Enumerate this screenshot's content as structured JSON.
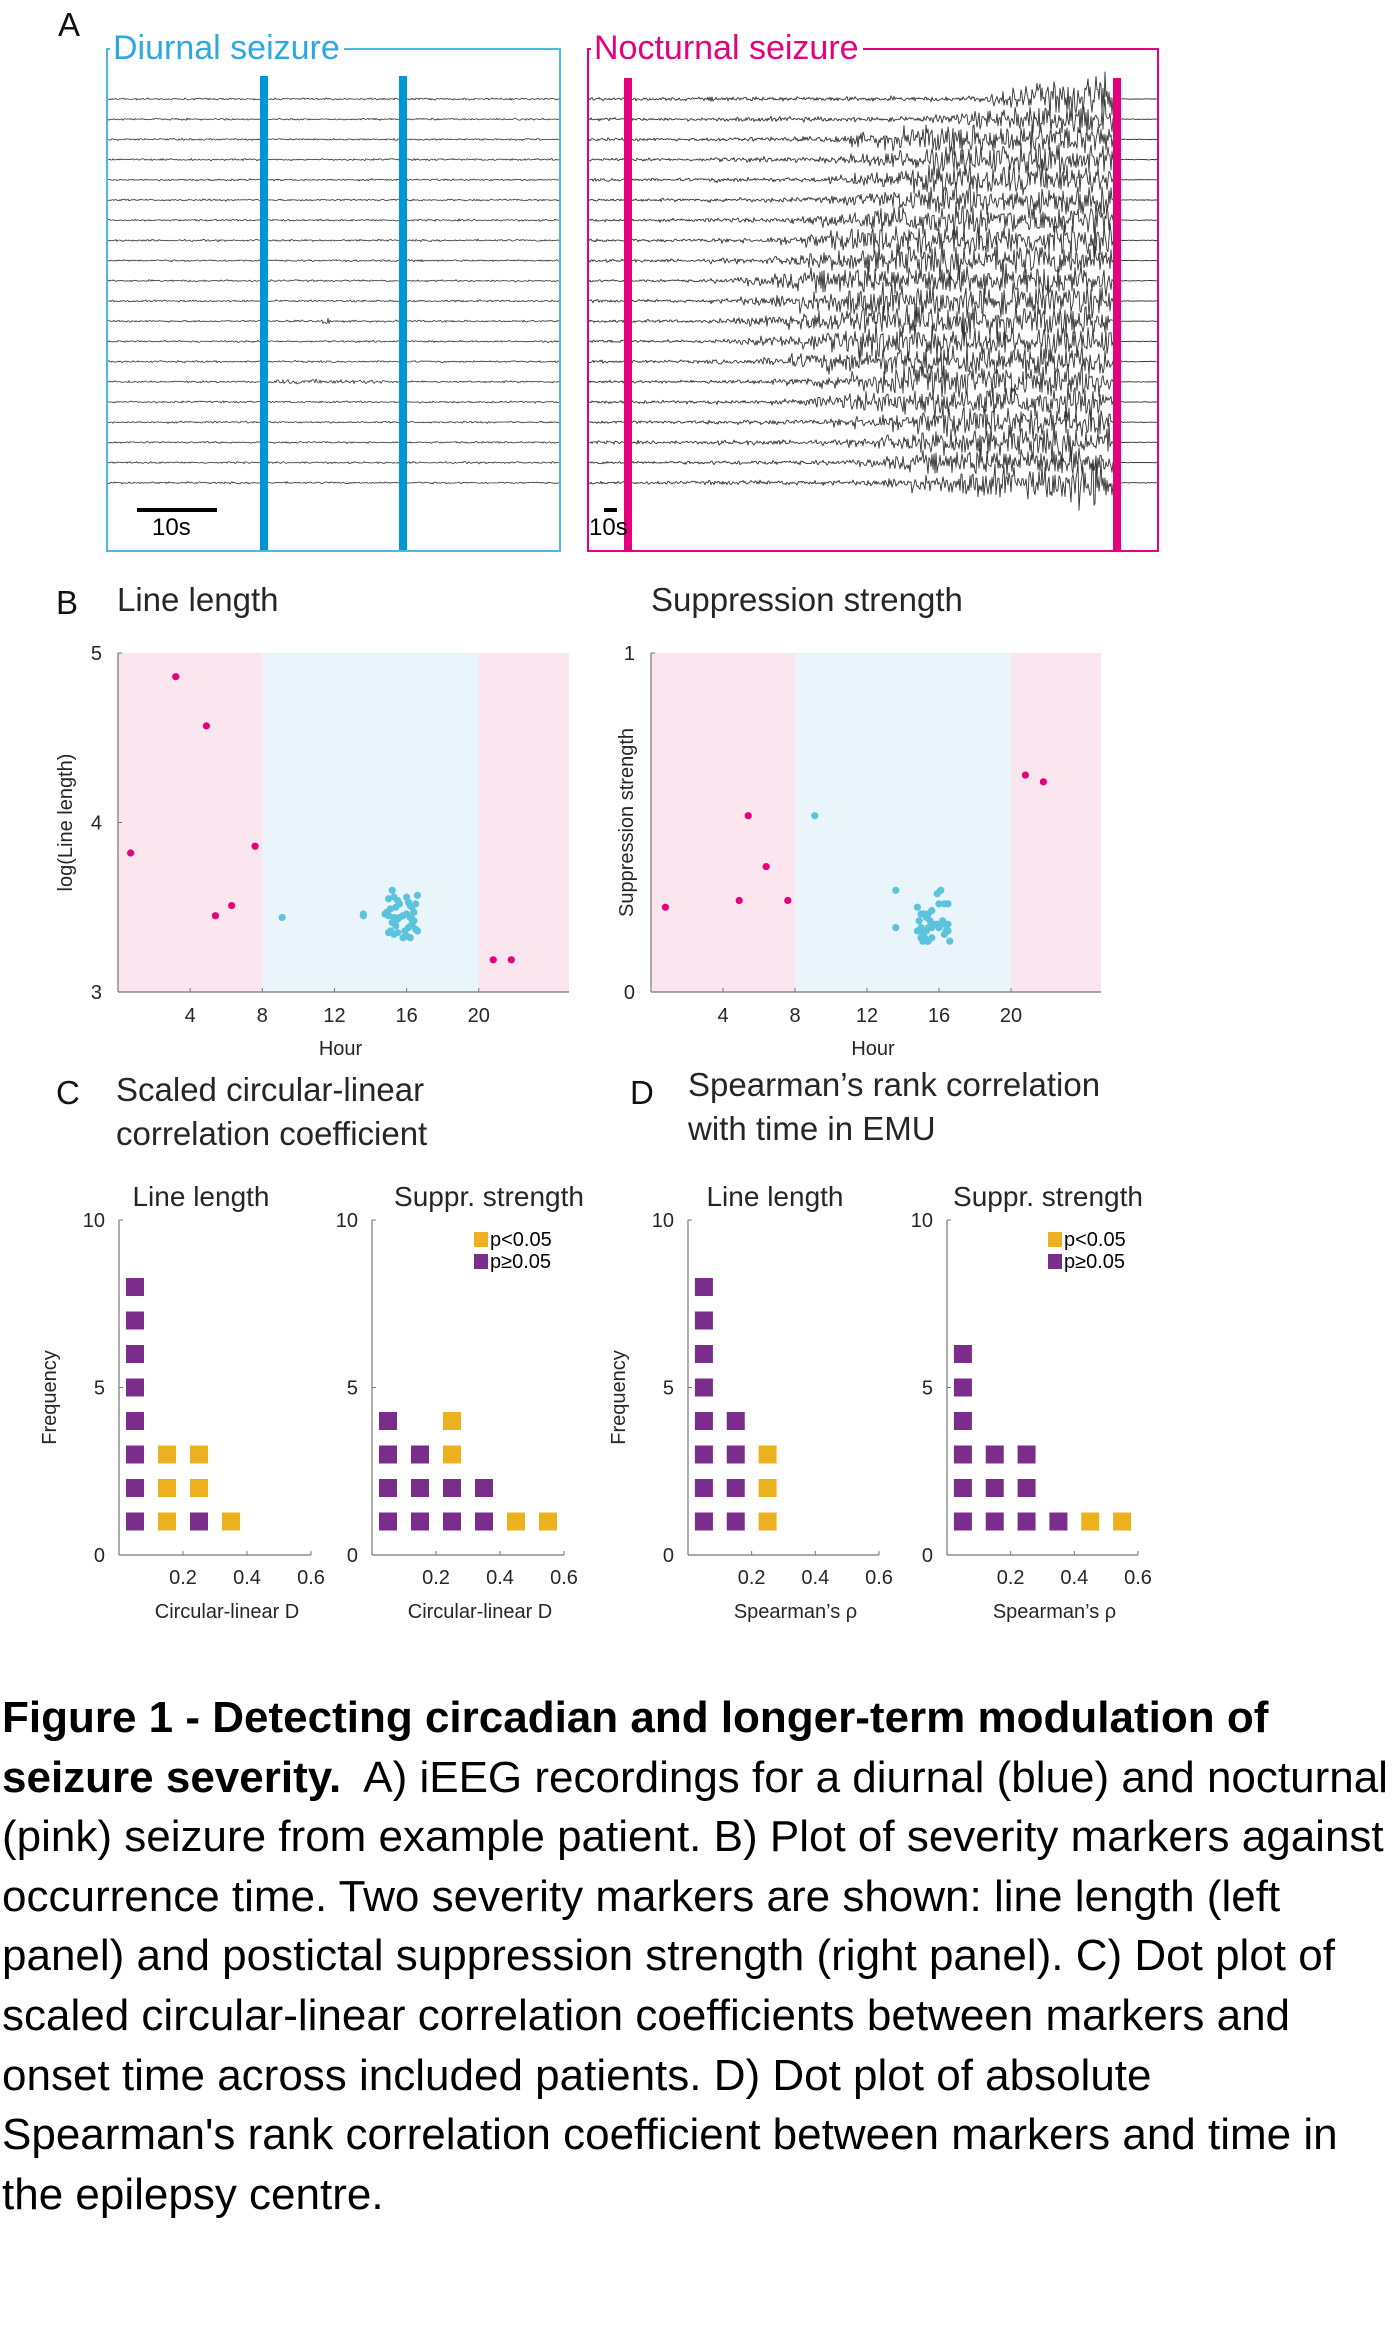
{
  "figure": {
    "panel_letters": {
      "a": "A",
      "b": "B",
      "c": "C",
      "d": "D"
    },
    "colors": {
      "diurnal": "#0096d6",
      "diurnal_box": "#4cb8e8",
      "diurnal_label": "#2ea8e1",
      "nocturnal": "#e5007d",
      "night_bg": "#fbe5ef",
      "day_bg": "#e9f4fb",
      "dot_day": "#5cc3dc",
      "dot_night": "#e5007d",
      "significant": "#edb11f",
      "not_significant": "#7a2d8a",
      "trace": "#333333"
    }
  },
  "panel_a": {
    "diurnal": {
      "label": "Diurnal seizure",
      "scale_bar_label": "10s",
      "channels": 20
    },
    "nocturnal": {
      "label": "Nocturnal seizure",
      "scale_bar_label": "10s",
      "channels": 20
    }
  },
  "panel_b": {
    "left_title": "Line length",
    "right_title": "Suppression strength"
  },
  "panel_c": {
    "title_line1": "Scaled circular-linear",
    "title_line2": "correlation coefficient"
  },
  "panel_d": {
    "title_line1": "Spearman’s rank correlation",
    "title_line2": "with time in EMU"
  },
  "chart_data": [
    {
      "id": "b-line-length",
      "type": "scatter",
      "title": "Line length",
      "xlabel": "Hour",
      "ylabel": "log(Line length)",
      "xlim": [
        0,
        25
      ],
      "ylim": [
        3,
        5
      ],
      "xticks": [
        4,
        8,
        12,
        16,
        20
      ],
      "yticks": [
        3,
        4,
        5
      ],
      "shading": [
        {
          "from": 0,
          "to": 8,
          "period": "night"
        },
        {
          "from": 8,
          "to": 20,
          "period": "day"
        },
        {
          "from": 20,
          "to": 25,
          "period": "night"
        }
      ],
      "series": [
        {
          "name": "nocturnal",
          "points": [
            [
              0.7,
              3.82
            ],
            [
              3.2,
              4.86
            ],
            [
              4.9,
              4.57
            ],
            [
              5.4,
              3.45
            ],
            [
              6.3,
              3.51
            ],
            [
              7.6,
              3.86
            ],
            [
              20.8,
              3.19
            ],
            [
              21.8,
              3.19
            ]
          ]
        },
        {
          "name": "diurnal",
          "points": [
            [
              9.1,
              3.44
            ],
            [
              13.6,
              3.45
            ],
            [
              13.6,
              3.46
            ],
            [
              15.2,
              3.6
            ],
            [
              15.0,
              3.55
            ],
            [
              15.3,
              3.56
            ],
            [
              15.5,
              3.54
            ],
            [
              15.6,
              3.52
            ],
            [
              15.4,
              3.5
            ],
            [
              15.1,
              3.49
            ],
            [
              14.9,
              3.47
            ],
            [
              14.8,
              3.46
            ],
            [
              15.0,
              3.45
            ],
            [
              15.3,
              3.44
            ],
            [
              15.5,
              3.43
            ],
            [
              15.6,
              3.44
            ],
            [
              15.2,
              3.41
            ],
            [
              15.4,
              3.39
            ],
            [
              15.1,
              3.36
            ],
            [
              15.0,
              3.35
            ],
            [
              15.3,
              3.34
            ],
            [
              15.5,
              3.35
            ],
            [
              15.8,
              3.32
            ],
            [
              16.0,
              3.33
            ],
            [
              16.2,
              3.32
            ],
            [
              15.9,
              3.36
            ],
            [
              16.1,
              3.38
            ],
            [
              16.3,
              3.4
            ],
            [
              16.5,
              3.37
            ],
            [
              16.6,
              3.36
            ],
            [
              16.4,
              3.42
            ],
            [
              16.2,
              3.44
            ],
            [
              16.0,
              3.46
            ],
            [
              16.4,
              3.47
            ],
            [
              16.3,
              3.5
            ],
            [
              16.5,
              3.52
            ],
            [
              16.1,
              3.53
            ],
            [
              16.2,
              3.51
            ],
            [
              16.0,
              3.56
            ],
            [
              16.6,
              3.57
            ],
            [
              15.8,
              3.45
            ],
            [
              16.3,
              3.43
            ]
          ]
        }
      ]
    },
    {
      "id": "b-suppression-strength",
      "type": "scatter",
      "title": "Suppression strength",
      "xlabel": "Hour",
      "ylabel": "Suppression strength",
      "xlim": [
        0,
        25
      ],
      "ylim": [
        0,
        1
      ],
      "xticks": [
        4,
        8,
        12,
        16,
        20
      ],
      "yticks": [
        0,
        1
      ],
      "shading": [
        {
          "from": 0,
          "to": 8,
          "period": "night"
        },
        {
          "from": 8,
          "to": 20,
          "period": "day"
        },
        {
          "from": 20,
          "to": 25,
          "period": "night"
        }
      ],
      "series": [
        {
          "name": "nocturnal",
          "points": [
            [
              0.8,
              0.25
            ],
            [
              4.9,
              0.27
            ],
            [
              5.4,
              0.52
            ],
            [
              6.4,
              0.37
            ],
            [
              7.6,
              0.27
            ],
            [
              20.8,
              0.64
            ],
            [
              21.8,
              0.62
            ]
          ]
        },
        {
          "name": "diurnal",
          "points": [
            [
              9.1,
              0.52
            ],
            [
              13.6,
              0.3
            ],
            [
              13.6,
              0.19
            ],
            [
              15.9,
              0.29
            ],
            [
              16.1,
              0.3
            ],
            [
              16.0,
              0.26
            ],
            [
              16.3,
              0.26
            ],
            [
              16.5,
              0.26
            ],
            [
              14.8,
              0.25
            ],
            [
              15.6,
              0.24
            ],
            [
              15.0,
              0.23
            ],
            [
              15.2,
              0.23
            ],
            [
              15.4,
              0.23
            ],
            [
              14.9,
              0.21
            ],
            [
              15.3,
              0.22
            ],
            [
              15.5,
              0.21
            ],
            [
              15.7,
              0.2
            ],
            [
              15.9,
              0.2
            ],
            [
              16.1,
              0.2
            ],
            [
              16.3,
              0.2
            ],
            [
              16.5,
              0.2
            ],
            [
              16.2,
              0.21
            ],
            [
              15.0,
              0.19
            ],
            [
              15.4,
              0.19
            ],
            [
              15.6,
              0.19
            ],
            [
              16.0,
              0.19
            ],
            [
              16.4,
              0.18
            ],
            [
              14.8,
              0.18
            ],
            [
              15.1,
              0.17
            ],
            [
              15.3,
              0.18
            ],
            [
              16.3,
              0.17
            ],
            [
              16.5,
              0.18
            ],
            [
              15.0,
              0.16
            ],
            [
              15.2,
              0.16
            ],
            [
              15.4,
              0.15
            ],
            [
              15.6,
              0.16
            ],
            [
              16.6,
              0.15
            ],
            [
              15.1,
              0.15
            ],
            [
              15.3,
              0.15
            ]
          ]
        }
      ]
    },
    {
      "id": "c-line-length",
      "type": "dot-histogram",
      "title": "Line length",
      "xlabel": "Circular-linear D",
      "ylabel": "Frequency",
      "xlim": [
        0,
        0.6
      ],
      "ylim": [
        0,
        10
      ],
      "xticks": [
        "0.2",
        "0.4",
        "0.6"
      ],
      "yticks": [
        "0",
        "5",
        "10"
      ],
      "bins": [
        {
          "center": 0.05,
          "stack": [
            "n",
            "n",
            "n",
            "n",
            "n",
            "n",
            "n",
            "n"
          ]
        },
        {
          "center": 0.15,
          "stack": [
            "s",
            "s",
            "s"
          ]
        },
        {
          "center": 0.25,
          "stack": [
            "n",
            "s",
            "s"
          ]
        },
        {
          "center": 0.35,
          "stack": [
            "s"
          ]
        }
      ]
    },
    {
      "id": "c-suppr-strength",
      "type": "dot-histogram",
      "title": "Suppr. strength",
      "xlabel": "Circular-linear D",
      "ylabel": "",
      "xlim": [
        0,
        0.6
      ],
      "ylim": [
        0,
        10
      ],
      "xticks": [
        "0.2",
        "0.4",
        "0.6"
      ],
      "yticks": [
        "0",
        "5",
        "10"
      ],
      "legend": {
        "position": "top-right",
        "entries": [
          {
            "key": "s",
            "label": "p<0.05"
          },
          {
            "key": "n",
            "label": "p≥0.05"
          }
        ]
      },
      "bins": [
        {
          "center": 0.05,
          "stack": [
            "n",
            "n",
            "n",
            "n"
          ]
        },
        {
          "center": 0.15,
          "stack": [
            "n",
            "n",
            "n"
          ]
        },
        {
          "center": 0.25,
          "stack": [
            "n",
            "n",
            "s",
            "s"
          ]
        },
        {
          "center": 0.35,
          "stack": [
            "n",
            "n"
          ]
        },
        {
          "center": 0.45,
          "stack": [
            "s"
          ]
        },
        {
          "center": 0.55,
          "stack": [
            "s"
          ]
        }
      ]
    },
    {
      "id": "d-line-length",
      "type": "dot-histogram",
      "title": "Line length",
      "xlabel": "Spearman’s ρ",
      "ylabel": "Frequency",
      "xlim": [
        0,
        0.6
      ],
      "ylim": [
        0,
        10
      ],
      "xticks": [
        "0.2",
        "0.4",
        "0.6"
      ],
      "yticks": [
        "0",
        "5",
        "10"
      ],
      "bins": [
        {
          "center": 0.05,
          "stack": [
            "n",
            "n",
            "n",
            "n",
            "n",
            "n",
            "n",
            "n"
          ]
        },
        {
          "center": 0.15,
          "stack": [
            "n",
            "n",
            "n",
            "n"
          ]
        },
        {
          "center": 0.25,
          "stack": [
            "s",
            "s",
            "s"
          ]
        }
      ]
    },
    {
      "id": "d-suppr-strength",
      "type": "dot-histogram",
      "title": "Suppr. strength",
      "xlabel": "Spearman’s ρ",
      "ylabel": "",
      "xlim": [
        0,
        0.6
      ],
      "ylim": [
        0,
        10
      ],
      "xticks": [
        "0.2",
        "0.4",
        "0.6"
      ],
      "yticks": [
        "0",
        "5",
        "10"
      ],
      "legend": {
        "position": "top-right",
        "entries": [
          {
            "key": "s",
            "label": "p<0.05"
          },
          {
            "key": "n",
            "label": "p≥0.05"
          }
        ]
      },
      "bins": [
        {
          "center": 0.05,
          "stack": [
            "n",
            "n",
            "n",
            "n",
            "n",
            "n"
          ]
        },
        {
          "center": 0.15,
          "stack": [
            "n",
            "n",
            "n"
          ]
        },
        {
          "center": 0.25,
          "stack": [
            "n",
            "n",
            "n"
          ]
        },
        {
          "center": 0.35,
          "stack": [
            "n"
          ]
        },
        {
          "center": 0.45,
          "stack": [
            "s"
          ]
        },
        {
          "center": 0.55,
          "stack": [
            "s"
          ]
        }
      ]
    }
  ],
  "caption": {
    "bold": "Figure 1 - Detecting circadian and longer-term modulation of seizure severity.",
    "body": "A) iEEG recordings for a diurnal (blue) and nocturnal (pink) seizure from example patient. B) Plot of severity markers against occurrence time. Two severity markers are shown: line length (left panel) and postictal suppression strength (right panel). C) Dot plot of scaled circular-linear correlation coefficients between markers and onset time across included patients. D) Dot plot of absolute Spearman's rank correlation coefficient between markers and time in the epilepsy centre."
  }
}
